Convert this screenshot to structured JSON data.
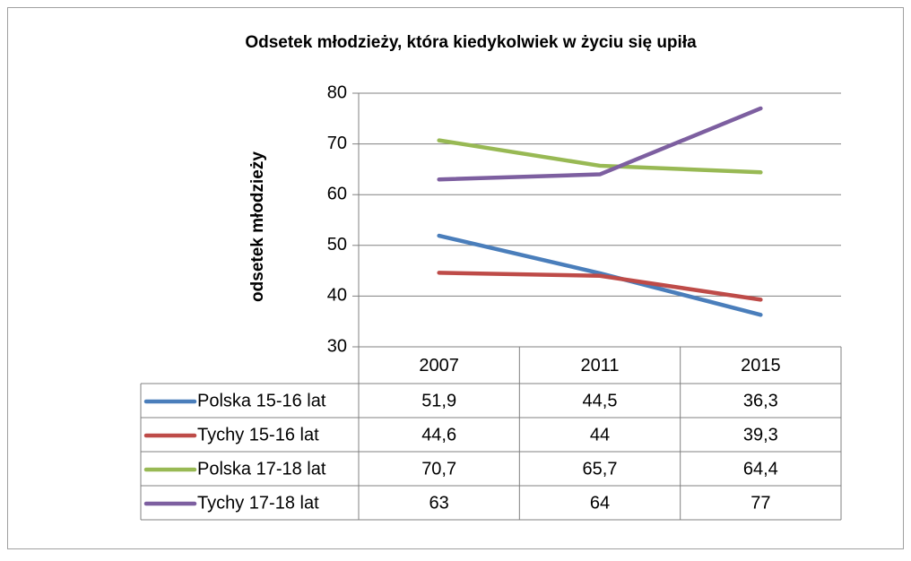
{
  "chart_data": {
    "type": "line",
    "title": "Odsetek młodzieży, która kiedykolwiek w życiu się upiła",
    "y_label": "odsetek młodzieży",
    "categories": [
      "2007",
      "2011",
      "2015"
    ],
    "series": [
      {
        "name": "Polska 15-16 lat",
        "color": "#4a7ebb",
        "values": [
          51.9,
          44.5,
          36.3
        ],
        "value_labels": [
          "51,9",
          "44,5",
          "36,3"
        ]
      },
      {
        "name": "Tychy 15-16 lat",
        "color": "#be4b48",
        "values": [
          44.6,
          44,
          39.3
        ],
        "value_labels": [
          "44,6",
          "44",
          "39,3"
        ]
      },
      {
        "name": "Polska 17-18 lat",
        "color": "#98b954",
        "values": [
          70.7,
          65.7,
          64.4
        ],
        "value_labels": [
          "70,7",
          "65,7",
          "64,4"
        ]
      },
      {
        "name": "Tychy 17-18 lat",
        "color": "#7d5fa0",
        "values": [
          63,
          64,
          77
        ]
      }
    ],
    "ylim": [
      30,
      80
    ],
    "yticks": [
      30,
      40,
      50,
      60,
      70,
      80
    ],
    "grid": true,
    "data_table": true
  }
}
